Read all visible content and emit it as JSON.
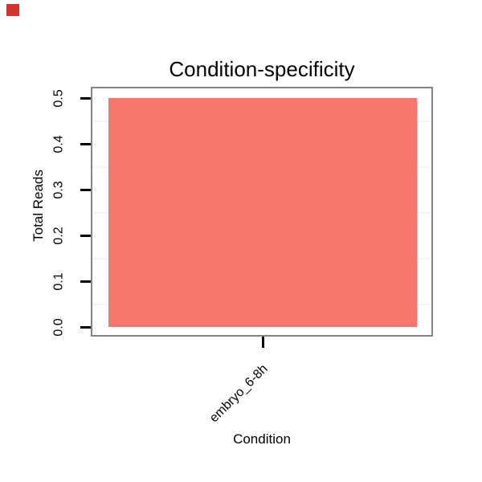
{
  "marker": {
    "name": "red-square-marker",
    "color": "#d0342c"
  },
  "chart_data": {
    "type": "bar",
    "title": "Condition-specificity",
    "xlabel": "Condition",
    "ylabel": "Total Reads",
    "categories": [
      "embryo_6-8h"
    ],
    "values": [
      0.5
    ],
    "ylim": [
      0,
      0.5
    ],
    "yticks": [
      {
        "value": 0.0,
        "label": "0.0"
      },
      {
        "value": 0.1,
        "label": "0.1"
      },
      {
        "value": 0.2,
        "label": "0.2"
      },
      {
        "value": 0.3,
        "label": "0.3"
      },
      {
        "value": 0.4,
        "label": "0.4"
      },
      {
        "value": 0.5,
        "label": "0.5"
      }
    ],
    "minor_gridlines": [
      0.05,
      0.15,
      0.25,
      0.35,
      0.45
    ],
    "grid": "minor horizontal only",
    "legend": "none",
    "bar_color": "#F8766D",
    "panel_border_color": "#848484",
    "gridline_color": "#f5f5f5",
    "tick_color": "#000000",
    "text_color": "#000000",
    "background_color": "#ffffff"
  }
}
